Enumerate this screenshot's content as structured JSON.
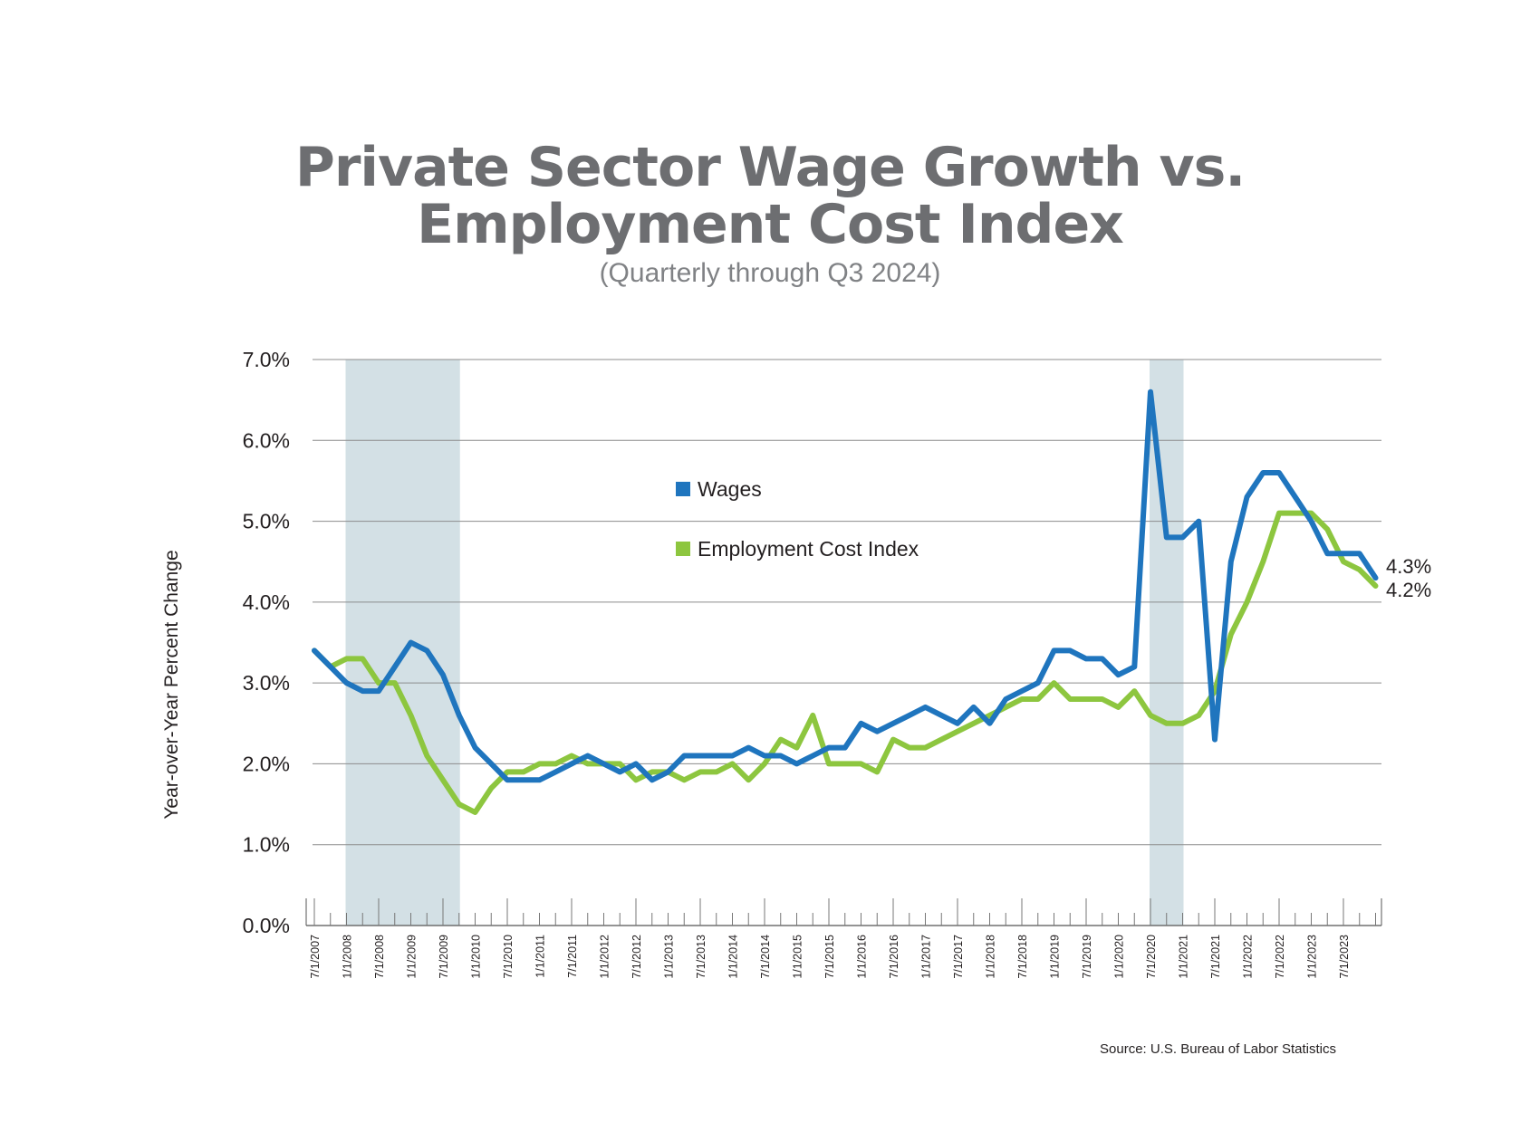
{
  "chart_data": {
    "type": "line",
    "title": "Private Sector Wage Growth vs.",
    "title_line2": "Employment Cost Index",
    "subtitle": "(Quarterly through Q3 2024)",
    "ylabel": "Year-over-Year Percent Change",
    "source": "Source: U.S. Bureau of Labor Statistics",
    "ylim": [
      0,
      7
    ],
    "yticks": [
      "0.0%",
      "1.0%",
      "2.0%",
      "3.0%",
      "4.0%",
      "5.0%",
      "6.0%",
      "7.0%"
    ],
    "x_tick_labels": [
      "7/1/2007",
      "1/1/2008",
      "7/1/2008",
      "1/1/2009",
      "7/1/2009",
      "1/1/2010",
      "7/1/2010",
      "1/1/2011",
      "7/1/2011",
      "1/1/2012",
      "7/1/2012",
      "1/1/2013",
      "7/1/2013",
      "1/1/2014",
      "7/1/2014",
      "1/1/2015",
      "7/1/2015",
      "1/1/2016",
      "7/1/2016",
      "1/1/2017",
      "7/1/2017",
      "1/1/2018",
      "7/1/2018",
      "1/1/2019",
      "7/1/2019",
      "1/1/2020",
      "7/1/2020",
      "1/1/2021",
      "7/1/2021",
      "1/1/2022",
      "7/1/2022",
      "1/1/2023",
      "7/1/2023"
    ],
    "recessions": [
      [
        2,
        9
      ],
      [
        52,
        54
      ]
    ],
    "series": [
      {
        "name": "Wages",
        "color": "#1f75be",
        "end_label": "4.3%",
        "values": [
          3.4,
          3.2,
          3.0,
          2.9,
          2.9,
          3.2,
          3.5,
          3.4,
          3.1,
          2.6,
          2.2,
          2.0,
          1.8,
          1.8,
          1.8,
          1.9,
          2.0,
          2.1,
          2.0,
          1.9,
          2.0,
          1.8,
          1.9,
          2.1,
          2.1,
          2.1,
          2.1,
          2.2,
          2.1,
          2.1,
          2.0,
          2.1,
          2.2,
          2.2,
          2.5,
          2.4,
          2.5,
          2.6,
          2.7,
          2.6,
          2.5,
          2.7,
          2.5,
          2.8,
          2.9,
          3.0,
          3.4,
          3.4,
          3.3,
          3.3,
          3.1,
          3.2,
          6.6,
          4.8,
          4.8,
          5.0,
          2.3,
          4.5,
          5.3,
          5.6,
          5.6,
          5.3,
          5.0,
          4.6,
          4.6,
          4.6,
          4.3
        ]
      },
      {
        "name": "Employment Cost Index",
        "color": "#8dc63f",
        "end_label": "4.2%",
        "values": [
          3.4,
          3.2,
          3.3,
          3.3,
          3.0,
          3.0,
          2.6,
          2.1,
          1.8,
          1.5,
          1.4,
          1.7,
          1.9,
          1.9,
          2.0,
          2.0,
          2.1,
          2.0,
          2.0,
          2.0,
          1.8,
          1.9,
          1.9,
          1.8,
          1.9,
          1.9,
          2.0,
          1.8,
          2.0,
          2.3,
          2.2,
          2.6,
          2.0,
          2.0,
          2.0,
          1.9,
          2.3,
          2.2,
          2.2,
          2.3,
          2.4,
          2.5,
          2.6,
          2.7,
          2.8,
          2.8,
          3.0,
          2.8,
          2.8,
          2.8,
          2.7,
          2.9,
          2.6,
          2.5,
          2.5,
          2.6,
          2.9,
          3.6,
          4.0,
          4.5,
          5.1,
          5.1,
          5.1,
          4.9,
          4.5,
          4.4,
          4.2
        ]
      }
    ],
    "legend": [
      "Wages",
      "Employment Cost Index"
    ]
  }
}
